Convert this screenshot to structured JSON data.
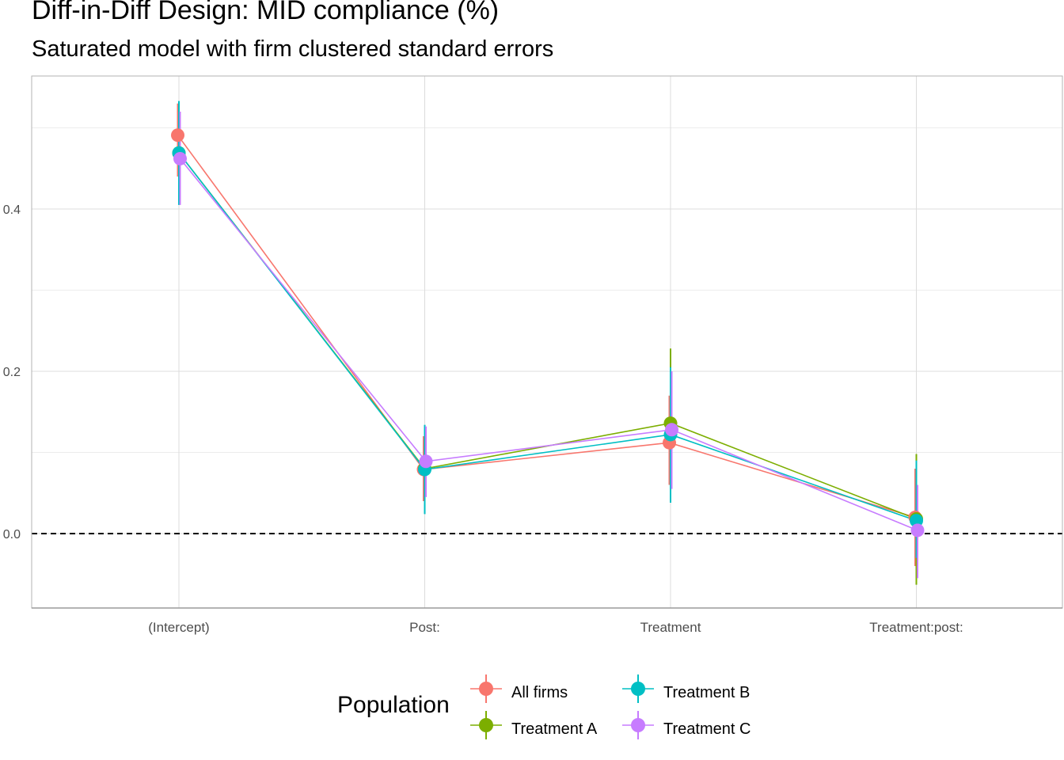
{
  "chart_data": {
    "type": "scatter",
    "title": "Diff-in-Diff Design: MID compliance (%)",
    "subtitle": "Saturated model with firm clustered standard errors",
    "xlabel": "",
    "ylabel": "",
    "categories": [
      "(Intercept)",
      "Post:",
      "Treatment",
      "Treatment:post:"
    ],
    "yticks": [
      0.0,
      0.2,
      0.4
    ],
    "ytick_labels": [
      "0.0",
      "0.2",
      "0.4"
    ],
    "ylim": [
      -0.093,
      0.556
    ],
    "reference_line": {
      "y": 0.0,
      "style": "dashed"
    },
    "grid": true,
    "legend": {
      "title": "Population",
      "position": "bottom"
    },
    "series": [
      {
        "name": "All firms",
        "color": "#F8766D",
        "values": [
          0.491,
          0.079,
          0.112,
          0.02
        ],
        "lower": [
          0.44,
          0.04,
          0.06,
          -0.04
        ],
        "upper": [
          0.53,
          0.12,
          0.17,
          0.08
        ]
      },
      {
        "name": "Treatment A",
        "color": "#7CAE00",
        "values": [
          0.469,
          0.08,
          0.136,
          0.018
        ],
        "lower": [
          0.41,
          0.03,
          0.045,
          -0.063
        ],
        "upper": [
          0.525,
          0.13,
          0.228,
          0.098
        ]
      },
      {
        "name": "Treatment B",
        "color": "#00BFC4",
        "values": [
          0.469,
          0.079,
          0.122,
          0.016
        ],
        "lower": [
          0.405,
          0.024,
          0.038,
          -0.03
        ],
        "upper": [
          0.533,
          0.134,
          0.205,
          0.09
        ]
      },
      {
        "name": "Treatment C",
        "color": "#C77CFF",
        "values": [
          0.462,
          0.089,
          0.128,
          0.004
        ],
        "lower": [
          0.405,
          0.045,
          0.055,
          -0.055
        ],
        "upper": [
          0.52,
          0.132,
          0.2,
          0.06
        ]
      }
    ]
  }
}
